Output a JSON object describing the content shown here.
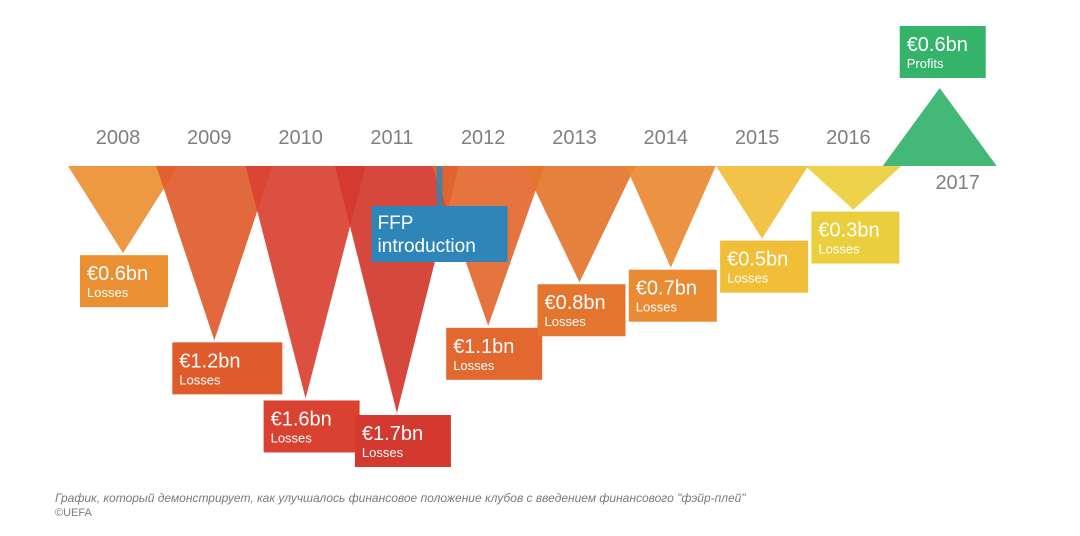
{
  "chart_data": {
    "type": "bar",
    "title": "",
    "xlabel": "",
    "ylabel": "",
    "categories": [
      "2008",
      "2009",
      "2010",
      "2011",
      "2012",
      "2013",
      "2014",
      "2015",
      "2016",
      "2017"
    ],
    "values": [
      -0.6,
      -1.2,
      -1.6,
      -1.7,
      -1.1,
      -0.8,
      -0.7,
      -0.5,
      -0.3,
      0.6
    ],
    "value_labels": [
      "€0.6bn",
      "€1.2bn",
      "€1.6bn",
      "€1.7bn",
      "€1.1bn",
      "€0.8bn",
      "€0.7bn",
      "€0.5bn",
      "€0.3bn",
      "€0.6bn"
    ],
    "kind_labels": [
      "Losses",
      "Losses",
      "Losses",
      "Losses",
      "Losses",
      "Losses",
      "Losses",
      "Losses",
      "Losses",
      "Profits"
    ],
    "colors": [
      "#EB8F33",
      "#E05B2C",
      "#D94131",
      "#D3392F",
      "#E3682F",
      "#E4752F",
      "#EA8A33",
      "#F1BE38",
      "#EBCE3D",
      "#34B36B"
    ],
    "label_text_colors": [
      "#ffffff",
      "#ffffff",
      "#ffffff",
      "#ffffff",
      "#ffffff",
      "#ffffff",
      "#ffffff",
      "#ffffff",
      "#ffffff",
      "#ffffff"
    ],
    "annotation": {
      "text_line1": "FFP",
      "text_line2": "introduction",
      "between": [
        "2011",
        "2012"
      ],
      "color": "#2E86B8"
    },
    "ylim": [
      -1.7,
      0.6
    ],
    "grid": false,
    "legend": "none"
  },
  "caption": "График, который демонстрирует, как улучшалось финансовое положение клубов с введением финансового \"фэйр-плей\"",
  "credit": "©UEFA"
}
